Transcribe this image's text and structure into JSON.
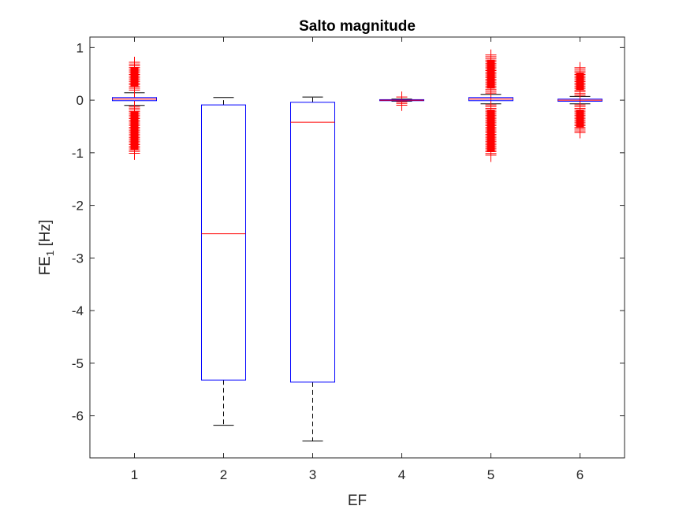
{
  "chart_data": {
    "type": "box",
    "title": "Salto magnitude",
    "xlabel": "EF",
    "ylabel": {
      "main": "FE",
      "sub": "1",
      "unit": " [Hz]"
    },
    "ylim": [
      -6.8,
      1.2
    ],
    "xlim": [
      0.5,
      6.5
    ],
    "categories": [
      "1",
      "2",
      "3",
      "4",
      "5",
      "6"
    ],
    "yticks": [
      "-6",
      "-5",
      "-4",
      "-3",
      "-2",
      "-1",
      "0",
      "1"
    ],
    "colors": {
      "box": "#0000ff",
      "median": "#ff0000",
      "whisker": "#000000",
      "outlier": "#ff0000"
    },
    "boxes": [
      {
        "label": "1",
        "q1": -0.01,
        "median": 0.02,
        "q3": 0.05,
        "whisker_low": -0.1,
        "whisker_high": 0.14,
        "outlier_ranges": [
          [
            -1.03,
            -0.12
          ],
          [
            0.16,
            0.72
          ]
        ]
      },
      {
        "label": "2",
        "q1": -5.32,
        "median": -2.54,
        "q3": -0.09,
        "whisker_low": -6.18,
        "whisker_high": 0.05,
        "outlier_ranges": []
      },
      {
        "label": "3",
        "q1": -5.36,
        "median": -0.42,
        "q3": -0.04,
        "whisker_low": -6.48,
        "whisker_high": 0.06,
        "outlier_ranges": []
      },
      {
        "label": "4",
        "q1": -0.01,
        "median": 0.0,
        "q3": 0.01,
        "whisker_low": -0.02,
        "whisker_high": 0.02,
        "outlier_ranges": [
          [
            -0.1,
            -0.03
          ],
          [
            0.03,
            0.06
          ]
        ]
      },
      {
        "label": "5",
        "q1": -0.01,
        "median": 0.02,
        "q3": 0.05,
        "whisker_low": -0.07,
        "whisker_high": 0.11,
        "outlier_ranges": [
          [
            -1.07,
            -0.09
          ],
          [
            0.13,
            0.86
          ]
        ]
      },
      {
        "label": "6",
        "q1": -0.02,
        "median": 0.0,
        "q3": 0.02,
        "whisker_low": -0.07,
        "whisker_high": 0.07,
        "outlier_ranges": [
          [
            -0.62,
            -0.09
          ],
          [
            0.09,
            0.62
          ]
        ]
      }
    ]
  }
}
